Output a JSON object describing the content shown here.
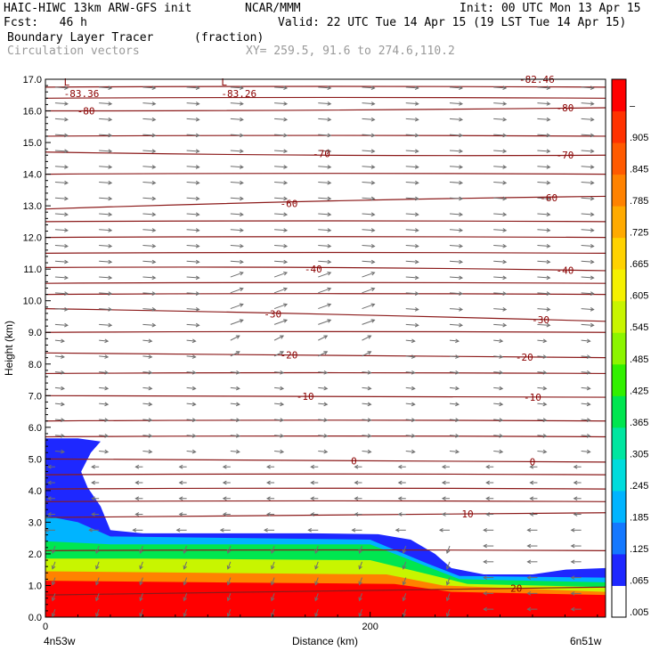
{
  "header": {
    "model": "HAIC-HIWC 13km ARW-GFS init",
    "org": "NCAR/MMM",
    "init": "Init: 00 UTC Mon 13 Apr 15",
    "fcst": "Fcst:   46 h",
    "valid": "Valid: 22 UTC Tue 14 Apr 15 (19 LST Tue 14 Apr 15)",
    "field": "Boundary Layer Tracer",
    "units": "(fraction)",
    "vectors": "Circulation vectors",
    "xy": "XY= 259.5, 91.6 to 274.6,110.2"
  },
  "chart_data": {
    "type": "heatmap",
    "title": "Boundary Layer Tracer",
    "units": "(fraction)",
    "xlabel": "Distance (km)",
    "ylabel": "Height (km)",
    "xlim": [
      0,
      345
    ],
    "ylim": [
      0,
      17
    ],
    "x_ticks": [
      0,
      200
    ],
    "x_tick_labels": [
      "0",
      "200"
    ],
    "x_end_labels": [
      "4n53w",
      "6n51w"
    ],
    "y_ticks": [
      0,
      1,
      2,
      3,
      4,
      5,
      6,
      7,
      8,
      9,
      10,
      11,
      12,
      13,
      14,
      15,
      16,
      17
    ],
    "y_tick_labels": [
      "0.0",
      "1.0",
      "2.0",
      "3.0",
      "4.0",
      "5.0",
      "6.0",
      "7.0",
      "8.0",
      "9.0",
      "10.0",
      "11.0",
      "12.0",
      "13.0",
      "14.0",
      "15.0",
      "16.0",
      "17.0"
    ],
    "colorbar": {
      "labels": [
        ".005",
        ".065",
        ".125",
        ".185",
        ".245",
        ".305",
        ".365",
        ".425",
        ".485",
        ".545",
        ".605",
        ".665",
        ".725",
        ".785",
        ".845",
        ".905",
        "–"
      ],
      "colors": [
        "#ffffff",
        "#1e28ff",
        "#1478ff",
        "#00b4ff",
        "#00dcdc",
        "#00e6a0",
        "#00e650",
        "#32f000",
        "#8cf500",
        "#c8f500",
        "#f5f000",
        "#ffd200",
        "#ffaa00",
        "#ff8200",
        "#ff5a00",
        "#ff3200",
        "#ff0000"
      ]
    },
    "tracer_top_km": [
      [
        0,
        5.65
      ],
      [
        20,
        5.65
      ],
      [
        34,
        5.55
      ],
      [
        28,
        5.2
      ],
      [
        22,
        4.6
      ],
      [
        26,
        4.1
      ],
      [
        34,
        3.5
      ],
      [
        40,
        2.75
      ],
      [
        60,
        2.65
      ],
      [
        120,
        2.65
      ],
      [
        165,
        2.65
      ],
      [
        205,
        2.62
      ],
      [
        225,
        2.45
      ],
      [
        240,
        2.0
      ],
      [
        250,
        1.55
      ],
      [
        270,
        1.35
      ],
      [
        300,
        1.35
      ],
      [
        320,
        1.5
      ],
      [
        345,
        1.55
      ]
    ],
    "tracer_layers": [
      {
        "label": ".125",
        "top_km": [
          [
            0,
            3.2
          ],
          [
            20,
            3.0
          ],
          [
            40,
            2.55
          ],
          [
            200,
            2.45
          ],
          [
            235,
            1.7
          ],
          [
            255,
            1.3
          ],
          [
            345,
            1.25
          ]
        ]
      },
      {
        "label": ".305",
        "top_km": [
          [
            0,
            2.4
          ],
          [
            40,
            2.3
          ],
          [
            200,
            2.3
          ],
          [
            235,
            1.6
          ],
          [
            255,
            1.2
          ],
          [
            345,
            1.1
          ]
        ]
      },
      {
        "label": ".545",
        "top_km": [
          [
            0,
            1.85
          ],
          [
            60,
            1.85
          ],
          [
            200,
            1.8
          ],
          [
            240,
            1.3
          ],
          [
            260,
            1.05
          ],
          [
            345,
            0.95
          ]
        ]
      },
      {
        "label": ".785",
        "top_km": [
          [
            0,
            1.45
          ],
          [
            100,
            1.4
          ],
          [
            210,
            1.35
          ],
          [
            245,
            1.0
          ],
          [
            345,
            0.8
          ]
        ]
      },
      {
        "label": ".905",
        "top_km": [
          [
            0,
            1.15
          ],
          [
            100,
            1.1
          ],
          [
            215,
            1.05
          ],
          [
            250,
            0.8
          ],
          [
            345,
            0.7
          ]
        ]
      }
    ],
    "temperature_contours_C": [
      {
        "value": -80,
        "label": "-80",
        "y_km": [
          16.0,
          16.0,
          16.1
        ]
      },
      {
        "value": -70,
        "label": "-70",
        "y_km": [
          14.7,
          14.55,
          14.6
        ]
      },
      {
        "value": -60,
        "label": "-60",
        "y_km": [
          12.9,
          13.2,
          13.3
        ]
      },
      {
        "value": -40,
        "label": "-40",
        "y_km": [
          11.05,
          11.1,
          10.95
        ]
      },
      {
        "value": -30,
        "label": "-30",
        "y_km": [
          9.75,
          9.6,
          9.35
        ]
      },
      {
        "value": -20,
        "label": "-20",
        "y_km": [
          8.35,
          8.3,
          8.2
        ]
      },
      {
        "value": -10,
        "label": "-10",
        "y_km": [
          7.0,
          6.95,
          6.95
        ]
      },
      {
        "value": 0,
        "label": "0",
        "y_km": [
          5.0,
          4.95,
          4.9
        ]
      },
      {
        "value": 10,
        "label": "10",
        "y_km": [
          3.15,
          3.2,
          3.3
        ]
      },
      {
        "value": 20,
        "label": "20",
        "y_km": [
          0.7,
          0.8,
          0.95
        ]
      }
    ],
    "extra_isolines_km": [
      16.75,
      16.4,
      15.2,
      14.0,
      12.5,
      12.0,
      11.5,
      10.55,
      10.2,
      9.0,
      7.7,
      6.2,
      5.7,
      4.5,
      4.05,
      3.65,
      2.1
    ],
    "lows": [
      {
        "label": "L",
        "value": "-83.36",
        "x": 8,
        "y": 16.8
      },
      {
        "label": "L",
        "value": "-83.26",
        "x": 105,
        "y": 16.8
      }
    ],
    "edge_label": "-82.46",
    "grid": false
  }
}
